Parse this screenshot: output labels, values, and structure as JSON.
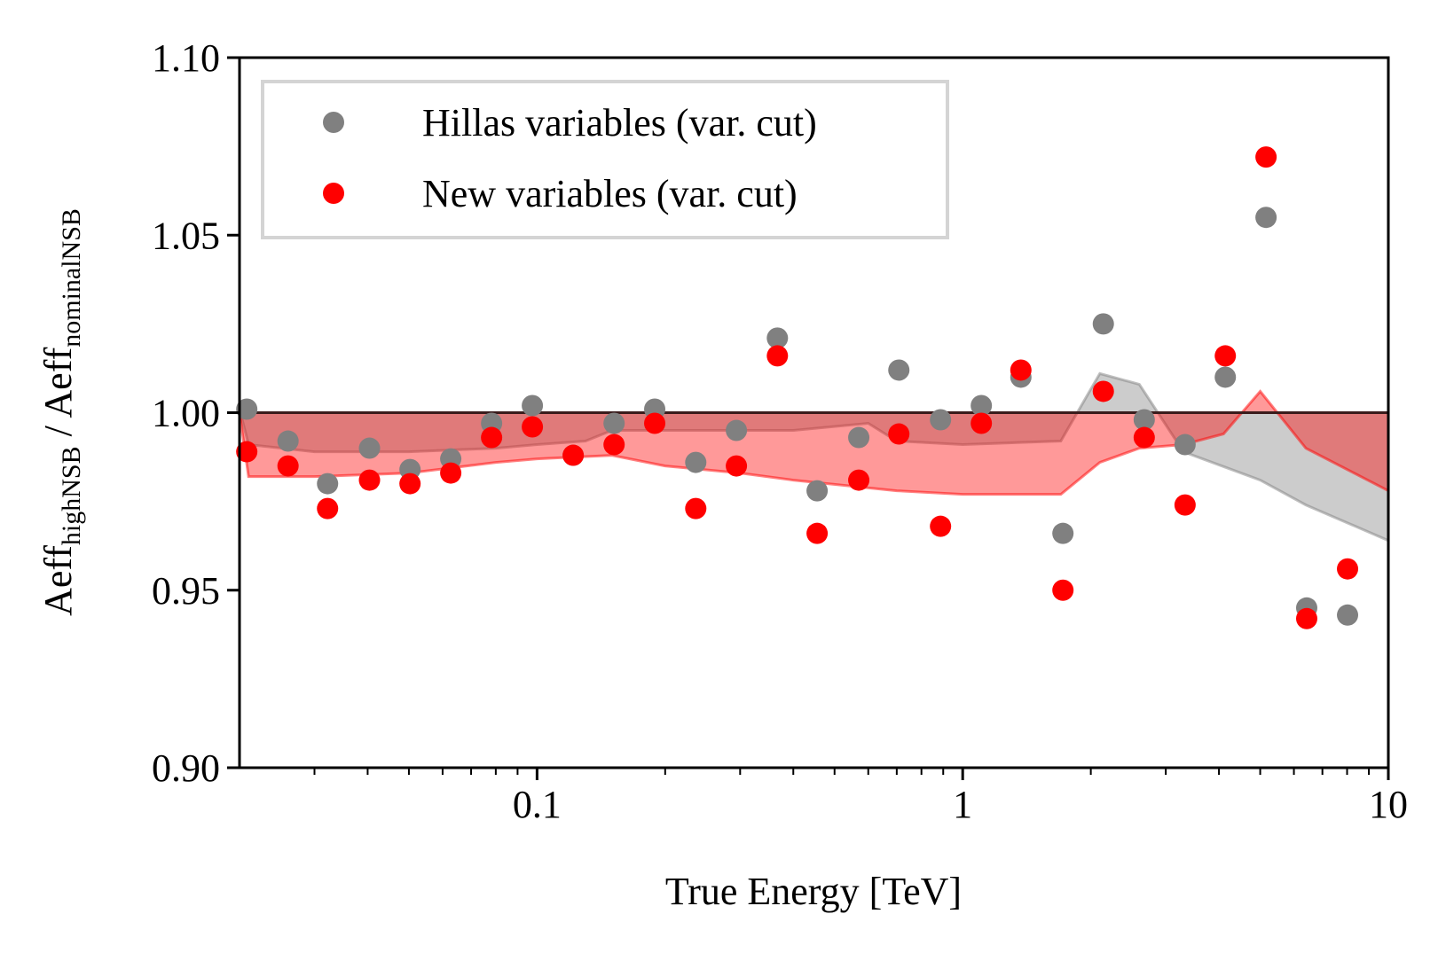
{
  "chart_data": {
    "type": "scatter",
    "xlabel": "True Energy [TeV]",
    "ylabel": [
      "Aeff",
      "highNSB",
      " / Aeff",
      "nominalNSB"
    ],
    "xscale": "log",
    "xlim": [
      0.02,
      10
    ],
    "ylim": [
      0.9,
      1.1
    ],
    "xticks": [
      0.1,
      1,
      10
    ],
    "xminorticks": [
      0.03,
      0.04,
      0.05,
      0.06,
      0.07,
      0.08,
      0.09,
      0.2,
      0.3,
      0.4,
      0.5,
      0.6,
      0.7,
      0.8,
      0.9,
      2,
      3,
      4,
      5,
      6,
      7,
      8,
      9
    ],
    "yticks": [
      {
        "value": 0.9,
        "label": "0.90"
      },
      0.95,
      {
        "value": 1.0,
        "label": "1.00"
      },
      1.05,
      {
        "value": 1.1,
        "label": "1.10"
      }
    ],
    "legend_loc": "upper left",
    "reference_line": 1,
    "x": [
      0.0208,
      0.026,
      0.0322,
      0.0404,
      0.0503,
      0.0627,
      0.0782,
      0.0975,
      0.1216,
      0.1517,
      0.189,
      0.236,
      0.294,
      0.367,
      0.455,
      0.57,
      0.708,
      0.887,
      1.106,
      1.37,
      1.72,
      2.14,
      2.67,
      3.33,
      4.14,
      5.16,
      6.43,
      8.02
    ],
    "series": [
      {
        "name": "Hillas variables (var. cut)",
        "color": "#808080",
        "values": [
          1.001,
          0.992,
          0.98,
          0.99,
          0.984,
          0.987,
          0.997,
          1.002,
          0.988,
          0.997,
          1.001,
          0.986,
          0.995,
          1.021,
          0.978,
          0.993,
          1.012,
          0.998,
          1.002,
          1.01,
          0.966,
          1.025,
          0.998,
          0.991,
          1.01,
          1.055,
          0.945,
          0.943
        ]
      },
      {
        "name": "New variables (var. cut)",
        "color": "#ff0000",
        "values": [
          0.989,
          0.985,
          0.973,
          0.981,
          0.98,
          0.983,
          0.993,
          0.996,
          0.988,
          0.991,
          0.997,
          0.973,
          0.985,
          1.016,
          0.966,
          0.981,
          0.994,
          0.968,
          0.997,
          1.012,
          0.95,
          1.006,
          0.993,
          0.974,
          1.016,
          1.072,
          0.942,
          0.956
        ]
      }
    ],
    "bands": [
      {
        "color": "#808080",
        "x": [
          0.02,
          0.021,
          0.03,
          0.05,
          0.08,
          0.1,
          0.13,
          0.15,
          0.3,
          0.4,
          0.6,
          0.7,
          1.0,
          1.7,
          2.1,
          2.6,
          3.3,
          5,
          6.4,
          10
        ],
        "values": [
          1.001,
          0.991,
          0.989,
          0.989,
          0.99,
          0.991,
          0.992,
          0.995,
          0.995,
          0.995,
          0.997,
          0.992,
          0.991,
          0.992,
          1.011,
          1.008,
          0.989,
          0.981,
          0.974,
          0.964
        ]
      },
      {
        "color": "#ff0000",
        "x": [
          0.02,
          0.021,
          0.03,
          0.05,
          0.08,
          0.1,
          0.15,
          0.2,
          0.3,
          0.4,
          0.7,
          1.0,
          1.7,
          2.1,
          2.6,
          3.3,
          4.1,
          5,
          6.4,
          10
        ],
        "values": [
          1.0,
          0.982,
          0.982,
          0.983,
          0.986,
          0.987,
          0.988,
          0.985,
          0.983,
          0.981,
          0.978,
          0.977,
          0.977,
          0.986,
          0.99,
          0.991,
          0.994,
          1.006,
          0.99,
          0.978
        ]
      }
    ]
  }
}
